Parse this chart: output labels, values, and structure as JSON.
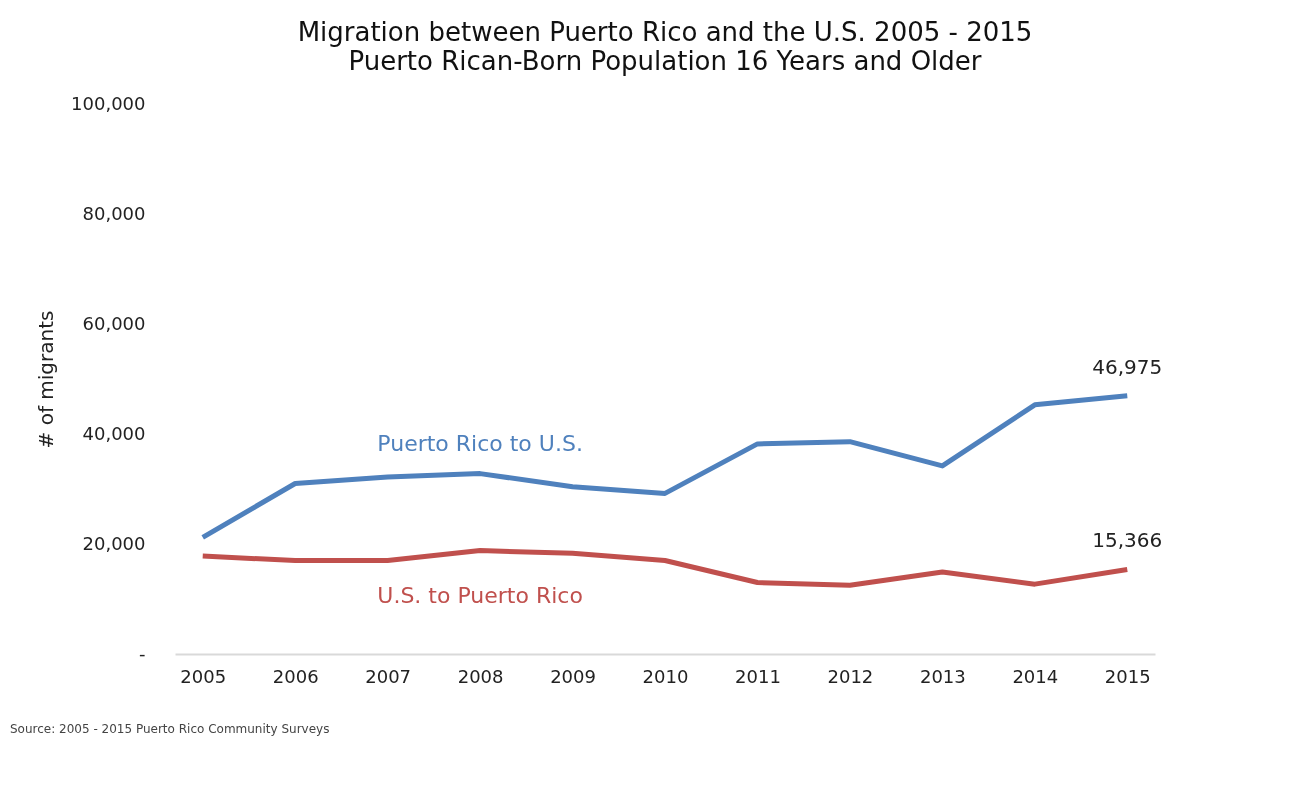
{
  "chart_data": {
    "type": "line",
    "title": "Migration between Puerto Rico and the U.S. 2005 - 2015",
    "subtitle": "Puerto Rican-Born Population 16 Years and Older",
    "ylabel": "# of migrants",
    "categories": [
      "2005",
      "2006",
      "2007",
      "2008",
      "2009",
      "2010",
      "2011",
      "2012",
      "2013",
      "2014",
      "2015"
    ],
    "series": [
      {
        "name": "Puerto Rico to U.S.",
        "color": "#4f81bd",
        "values": [
          21200,
          31000,
          32200,
          32800,
          30400,
          29200,
          38200,
          38600,
          34200,
          45300,
          46975
        ],
        "value_labels": [
          null,
          null,
          null,
          null,
          null,
          null,
          null,
          null,
          null,
          null,
          "46,975"
        ]
      },
      {
        "name": "U.S. to Puerto Rico",
        "color": "#c0504d",
        "values": [
          17800,
          17000,
          17000,
          18800,
          18300,
          17000,
          13000,
          12500,
          14900,
          12700,
          15366
        ],
        "value_labels": [
          null,
          null,
          null,
          null,
          null,
          null,
          null,
          null,
          null,
          null,
          "15,366"
        ]
      }
    ],
    "ylim": [
      0,
      100000
    ],
    "yticks": [
      {
        "value": 0,
        "label": "-"
      },
      {
        "value": 20000,
        "label": "20,000"
      },
      {
        "value": 40000,
        "label": "40,000"
      },
      {
        "value": 60000,
        "label": "60,000"
      },
      {
        "value": 80000,
        "label": "80,000"
      },
      {
        "value": 100000,
        "label": "100,000"
      }
    ],
    "grid": false,
    "legend": false,
    "marker": "none",
    "line_style": "solid",
    "annotations": [
      "Source: 2005  - 2015 Puerto Rico Community Surveys"
    ]
  }
}
